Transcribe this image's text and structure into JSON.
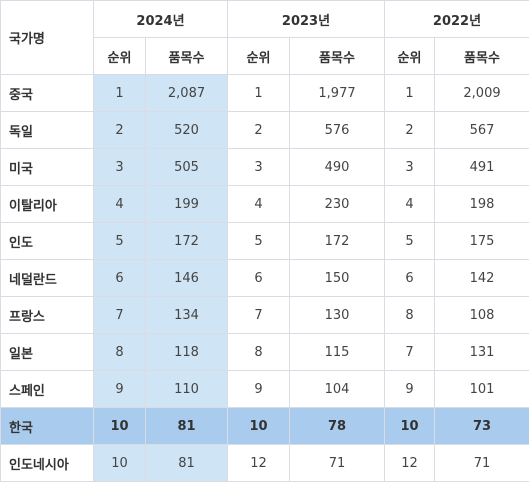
{
  "table": {
    "country_header": "국가명",
    "years": [
      "2024년",
      "2023년",
      "2022년"
    ],
    "sub_headers": [
      "순위",
      "품목수"
    ],
    "highlight_color": "#a9cbee",
    "column_highlight_color": "#cfe5f5",
    "rows": [
      {
        "country": "중국",
        "r2024": "1",
        "c2024": "2,087",
        "r2023": "1",
        "c2023": "1,977",
        "r2022": "1",
        "c2022": "2,009"
      },
      {
        "country": "독일",
        "r2024": "2",
        "c2024": "520",
        "r2023": "2",
        "c2023": "576",
        "r2022": "2",
        "c2022": "567"
      },
      {
        "country": "미국",
        "r2024": "3",
        "c2024": "505",
        "r2023": "3",
        "c2023": "490",
        "r2022": "3",
        "c2022": "491"
      },
      {
        "country": "이탈리아",
        "r2024": "4",
        "c2024": "199",
        "r2023": "4",
        "c2023": "230",
        "r2022": "4",
        "c2022": "198"
      },
      {
        "country": "인도",
        "r2024": "5",
        "c2024": "172",
        "r2023": "5",
        "c2023": "172",
        "r2022": "5",
        "c2022": "175"
      },
      {
        "country": "네덜란드",
        "r2024": "6",
        "c2024": "146",
        "r2023": "6",
        "c2023": "150",
        "r2022": "6",
        "c2022": "142"
      },
      {
        "country": "프랑스",
        "r2024": "7",
        "c2024": "134",
        "r2023": "7",
        "c2023": "130",
        "r2022": "8",
        "c2022": "108"
      },
      {
        "country": "일본",
        "r2024": "8",
        "c2024": "118",
        "r2023": "8",
        "c2023": "115",
        "r2022": "7",
        "c2022": "131"
      },
      {
        "country": "스페인",
        "r2024": "9",
        "c2024": "110",
        "r2023": "9",
        "c2023": "104",
        "r2022": "9",
        "c2022": "101"
      },
      {
        "country": "한국",
        "r2024": "10",
        "c2024": "81",
        "r2023": "10",
        "c2023": "78",
        "r2022": "10",
        "c2022": "73",
        "highlight": true
      },
      {
        "country": "인도네시아",
        "r2024": "10",
        "c2024": "81",
        "r2023": "12",
        "c2023": "71",
        "r2022": "12",
        "c2022": "71"
      }
    ]
  }
}
